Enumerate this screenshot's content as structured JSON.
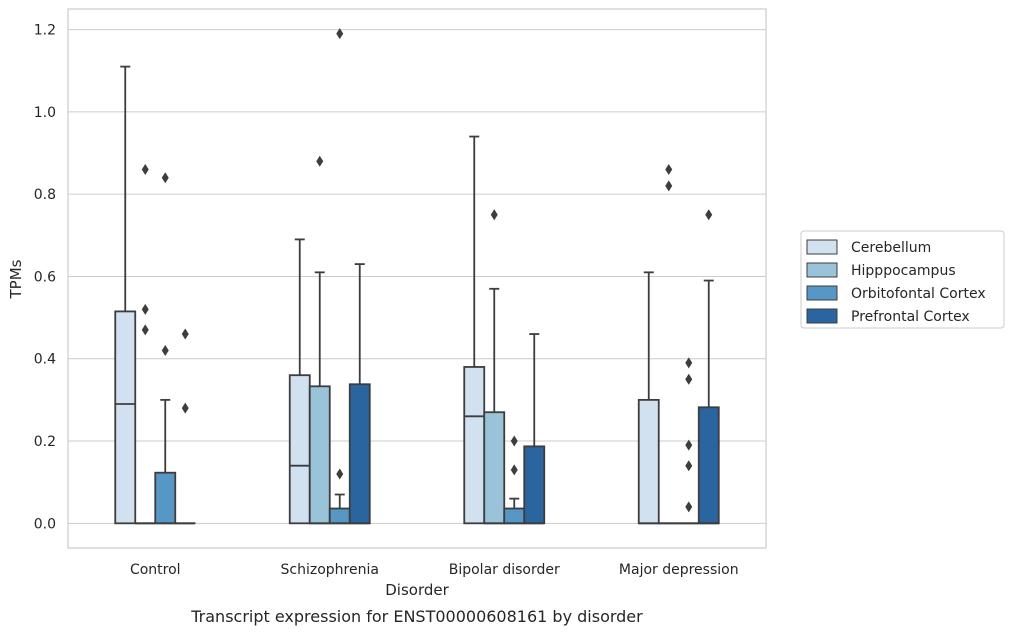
{
  "chart_data": {
    "type": "box",
    "caption": "Transcript expression for ENST00000608161 by disorder",
    "xlabel": "Disorder",
    "ylabel": "TPMs",
    "ylim": [
      -0.06,
      1.25
    ],
    "yticks": [
      0.0,
      0.2,
      0.4,
      0.6,
      0.8,
      1.0,
      1.2
    ],
    "ytick_labels": [
      "0.0",
      "0.2",
      "0.4",
      "0.6",
      "0.8",
      "1.0",
      "1.2"
    ],
    "grid": true,
    "legend_position": "right",
    "categories": [
      "Control",
      "Schizophrenia",
      "Bipolar disorder",
      "Major depression"
    ],
    "series": [
      {
        "name": "Cerebellum",
        "color": "#d1e1f0",
        "boxes": [
          {
            "q1": 0.0,
            "median": 0.29,
            "q3": 0.515,
            "whisker_low": 0.0,
            "whisker_high": 1.11,
            "outliers": []
          },
          {
            "q1": 0.0,
            "median": 0.14,
            "q3": 0.36,
            "whisker_low": 0.0,
            "whisker_high": 0.69,
            "outliers": []
          },
          {
            "q1": 0.0,
            "median": 0.26,
            "q3": 0.38,
            "whisker_low": 0.0,
            "whisker_high": 0.94,
            "outliers": []
          },
          {
            "q1": 0.0,
            "median": 0.0,
            "q3": 0.3,
            "whisker_low": 0.0,
            "whisker_high": 0.61,
            "outliers": []
          }
        ]
      },
      {
        "name": "Hipppocampus",
        "color": "#9ac2d9",
        "boxes": [
          {
            "q1": 0.0,
            "median": 0.0,
            "q3": 0.0,
            "whisker_low": 0.0,
            "whisker_high": 0.0,
            "outliers": [
              0.86,
              0.52,
              0.47
            ]
          },
          {
            "q1": 0.0,
            "median": 0.0,
            "q3": 0.333,
            "whisker_low": 0.0,
            "whisker_high": 0.61,
            "outliers": [
              0.88
            ]
          },
          {
            "q1": 0.0,
            "median": 0.0,
            "q3": 0.27,
            "whisker_low": 0.0,
            "whisker_high": 0.57,
            "outliers": [
              0.75
            ]
          },
          {
            "q1": 0.0,
            "median": 0.0,
            "q3": 0.0,
            "whisker_low": 0.0,
            "whisker_high": 0.0,
            "outliers": [
              0.86,
              0.82
            ]
          }
        ]
      },
      {
        "name": "Orbitofontal Cortex",
        "color": "#5797c5",
        "boxes": [
          {
            "q1": 0.0,
            "median": 0.0,
            "q3": 0.123,
            "whisker_low": 0.0,
            "whisker_high": 0.3,
            "outliers": [
              0.84,
              0.42
            ]
          },
          {
            "q1": 0.0,
            "median": 0.0,
            "q3": 0.036,
            "whisker_low": 0.0,
            "whisker_high": 0.07,
            "outliers": [
              1.19,
              0.12
            ]
          },
          {
            "q1": 0.0,
            "median": 0.0,
            "q3": 0.036,
            "whisker_low": 0.0,
            "whisker_high": 0.06,
            "outliers": [
              0.2,
              0.13
            ]
          },
          {
            "q1": 0.0,
            "median": 0.0,
            "q3": 0.0,
            "whisker_low": 0.0,
            "whisker_high": 0.0,
            "outliers": [
              0.39,
              0.35
            ]
          }
        ]
      },
      {
        "name": "Prefrontal Cortex",
        "color": "#2a65a0",
        "boxes": [
          {
            "q1": 0.0,
            "median": 0.0,
            "q3": 0.0,
            "whisker_low": 0.0,
            "whisker_high": 0.0,
            "outliers": [
              0.46,
              0.28
            ]
          },
          {
            "q1": 0.0,
            "median": 0.0,
            "q3": 0.338,
            "whisker_low": 0.0,
            "whisker_high": 0.63,
            "outliers": []
          },
          {
            "q1": 0.0,
            "median": 0.0,
            "q3": 0.187,
            "whisker_low": 0.0,
            "whisker_high": 0.46,
            "outliers": []
          },
          {
            "q1": 0.0,
            "median": 0.0,
            "q3": 0.282,
            "whisker_low": 0.0,
            "whisker_high": 0.59,
            "outliers": [
              0.75
            ]
          }
        ]
      }
    ],
    "extra_outliers": [
      {
        "category_index": 3,
        "series_index": 2,
        "value": 0.19
      },
      {
        "category_index": 3,
        "series_index": 2,
        "value": 0.14
      },
      {
        "category_index": 3,
        "series_index": 2,
        "value": 0.04
      }
    ]
  }
}
